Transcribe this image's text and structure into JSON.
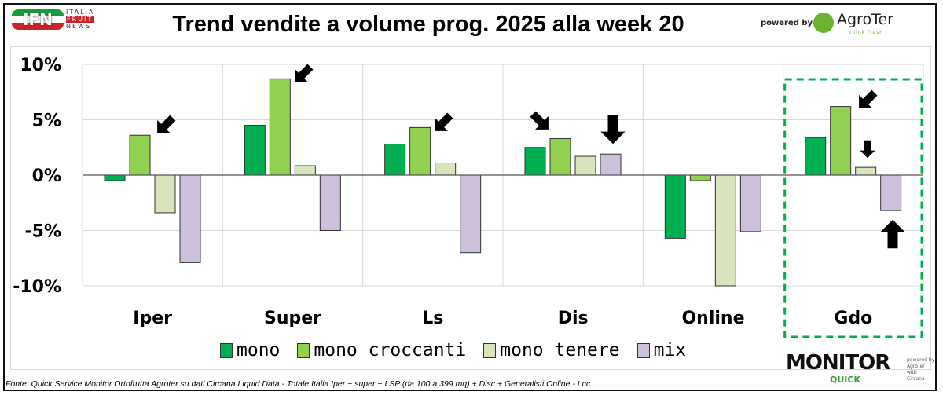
{
  "header": {
    "title": "Trend vendite a volume prog. 2025 alla week 20",
    "logo_left": {
      "main": "IFN",
      "lines": [
        "ITALIA",
        "FRUIT",
        "NEWS"
      ]
    },
    "powered_by": "powered by",
    "logo_right": {
      "name": "AgroTer",
      "tagline": "think fresh"
    }
  },
  "footer": {
    "source": "Fonte: Quick Service Monitor Ortofrutta Agroter su dati Circana Liquid Data - Totale Italia Iper + super + LSP (da 100 a 399 mq) + Disc + Generalisti Online - Lcc",
    "badge": {
      "name": "MONITOR",
      "sub": "QUICK",
      "side": [
        "powered by",
        "AgroTer",
        "with",
        "Circana"
      ]
    }
  },
  "chart_data": {
    "type": "bar",
    "title": "Trend vendite a volume prog. 2025 alla week 20",
    "categories": [
      "Iper",
      "Super",
      "Ls",
      "Dis",
      "Online",
      "Gdo"
    ],
    "series": [
      {
        "name": "mono",
        "color": "#00b050",
        "values": [
          -0.5,
          4.5,
          2.8,
          2.5,
          -5.7,
          3.4
        ]
      },
      {
        "name": "mono croccanti",
        "color": "#92d050",
        "values": [
          3.6,
          8.7,
          4.3,
          3.3,
          -0.5,
          6.2
        ]
      },
      {
        "name": "mono tenere",
        "color": "#d8e4bc",
        "values": [
          -3.4,
          0.85,
          1.1,
          1.7,
          -10,
          0.7
        ]
      },
      {
        "name": "mix",
        "color": "#ccc0da",
        "values": [
          -7.9,
          -5.0,
          -7.0,
          1.9,
          -5.1,
          -3.2
        ]
      }
    ],
    "ylim": [
      -10,
      10
    ],
    "yticks": [
      10,
      5,
      0,
      -5,
      -10
    ],
    "ytick_labels": [
      "10%",
      "5%",
      "0%",
      "-5%",
      "-10%"
    ],
    "xlabel": "",
    "ylabel": "",
    "grid": true,
    "legend": "bottom",
    "highlight": {
      "category": "Gdo",
      "style": "dashed green box",
      "color": "#00b050"
    }
  }
}
